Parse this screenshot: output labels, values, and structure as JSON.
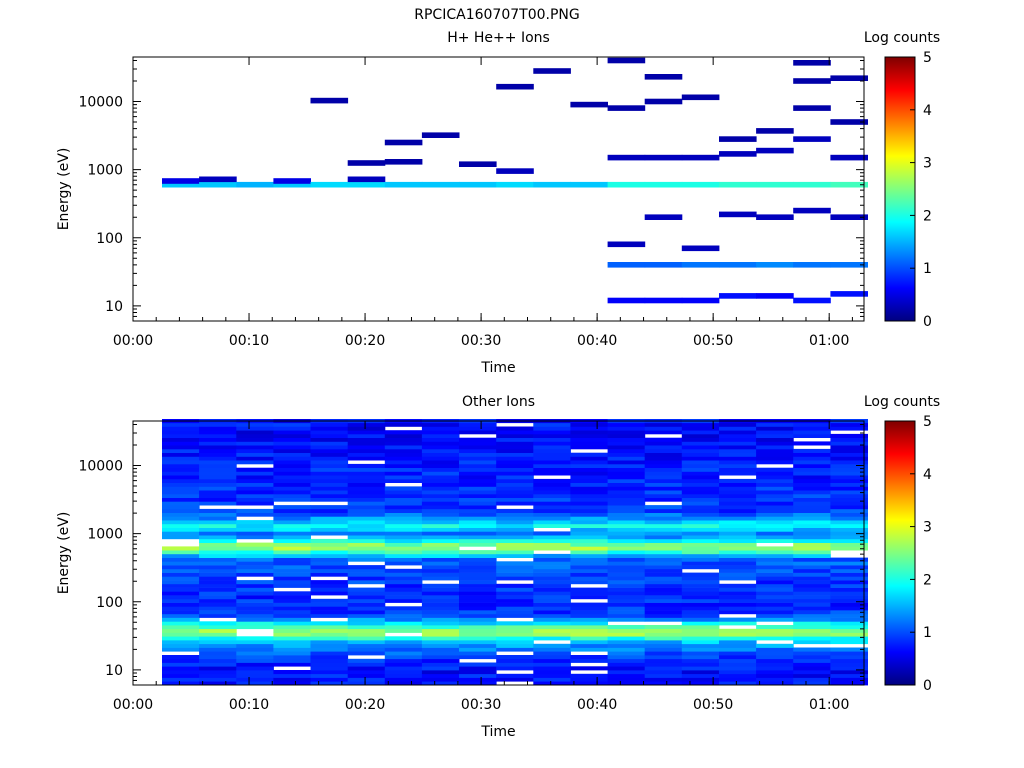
{
  "figure_title": "RPCICA160707T00.PNG",
  "chart_data": [
    {
      "type": "heatmap",
      "title": "H+ He++ Ions",
      "xlabel": "Time",
      "ylabel": "Energy (eV)",
      "x_ticks": [
        "00:00",
        "00:10",
        "00:20",
        "00:30",
        "00:40",
        "00:50",
        "01:00"
      ],
      "x_range_minutes": [
        0,
        63
      ],
      "y_scale": "log",
      "y_range": [
        6,
        45000
      ],
      "y_ticks": [
        "10",
        "100",
        "1000",
        "10000"
      ],
      "colorbar_label": "Log counts",
      "colorbar_ticks": [
        "0",
        "1",
        "2",
        "3",
        "4",
        "5"
      ],
      "colorbar_range": [
        0,
        5
      ],
      "colormap": "jet",
      "time_bins_minutes": [
        2.5,
        5.7,
        8.9,
        12.1,
        15.3,
        18.5,
        21.7,
        24.9,
        28.1,
        31.3,
        34.5,
        37.7,
        40.9,
        44.1,
        47.3,
        50.5,
        53.7,
        56.9,
        60.1
      ],
      "cells": [
        {
          "t": 0,
          "e": 600,
          "v": 1.6
        },
        {
          "t": 0,
          "e": 680,
          "v": 0.5
        },
        {
          "t": 1,
          "e": 600,
          "v": 1.6
        },
        {
          "t": 1,
          "e": 720,
          "v": 0.3
        },
        {
          "t": 2,
          "e": 600,
          "v": 1.5
        },
        {
          "t": 3,
          "e": 600,
          "v": 1.6
        },
        {
          "t": 3,
          "e": 680,
          "v": 0.5
        },
        {
          "t": 4,
          "e": 600,
          "v": 1.7
        },
        {
          "t": 4,
          "e": 10300,
          "v": 0.2
        },
        {
          "t": 5,
          "e": 600,
          "v": 1.7
        },
        {
          "t": 5,
          "e": 720,
          "v": 0.3
        },
        {
          "t": 5,
          "e": 1250,
          "v": 0.2
        },
        {
          "t": 6,
          "e": 600,
          "v": 1.6
        },
        {
          "t": 6,
          "e": 1300,
          "v": 0.2
        },
        {
          "t": 6,
          "e": 2500,
          "v": 0.2
        },
        {
          "t": 7,
          "e": 600,
          "v": 1.6
        },
        {
          "t": 7,
          "e": 3200,
          "v": 0.2
        },
        {
          "t": 8,
          "e": 600,
          "v": 1.6
        },
        {
          "t": 8,
          "e": 1200,
          "v": 0.2
        },
        {
          "t": 9,
          "e": 600,
          "v": 1.7
        },
        {
          "t": 9,
          "e": 950,
          "v": 0.3
        },
        {
          "t": 9,
          "e": 16500,
          "v": 0.2
        },
        {
          "t": 10,
          "e": 600,
          "v": 1.6
        },
        {
          "t": 10,
          "e": 28000,
          "v": 0.2
        },
        {
          "t": 11,
          "e": 600,
          "v": 1.6
        },
        {
          "t": 11,
          "e": 9000,
          "v": 0.2
        },
        {
          "t": 12,
          "e": 600,
          "v": 2.0
        },
        {
          "t": 12,
          "e": 40,
          "v": 1.1
        },
        {
          "t": 12,
          "e": 12,
          "v": 0.6
        },
        {
          "t": 12,
          "e": 80,
          "v": 0.3
        },
        {
          "t": 12,
          "e": 1500,
          "v": 0.3
        },
        {
          "t": 12,
          "e": 40000,
          "v": 0.2
        },
        {
          "t": 12,
          "e": 8000,
          "v": 0.2
        },
        {
          "t": 13,
          "e": 600,
          "v": 2.0
        },
        {
          "t": 13,
          "e": 40,
          "v": 1.1
        },
        {
          "t": 13,
          "e": 12,
          "v": 0.6
        },
        {
          "t": 13,
          "e": 200,
          "v": 0.3
        },
        {
          "t": 13,
          "e": 1500,
          "v": 0.3
        },
        {
          "t": 13,
          "e": 23000,
          "v": 0.2
        },
        {
          "t": 13,
          "e": 10000,
          "v": 0.2
        },
        {
          "t": 14,
          "e": 600,
          "v": 2.0
        },
        {
          "t": 14,
          "e": 40,
          "v": 1.2
        },
        {
          "t": 14,
          "e": 12,
          "v": 0.6
        },
        {
          "t": 14,
          "e": 70,
          "v": 0.3
        },
        {
          "t": 14,
          "e": 1500,
          "v": 0.3
        },
        {
          "t": 14,
          "e": 11500,
          "v": 0.2
        },
        {
          "t": 15,
          "e": 600,
          "v": 2.1
        },
        {
          "t": 15,
          "e": 40,
          "v": 1.2
        },
        {
          "t": 15,
          "e": 14,
          "v": 0.7
        },
        {
          "t": 15,
          "e": 220,
          "v": 0.3
        },
        {
          "t": 15,
          "e": 1700,
          "v": 0.3
        },
        {
          "t": 15,
          "e": 2800,
          "v": 0.2
        },
        {
          "t": 16,
          "e": 600,
          "v": 2.1
        },
        {
          "t": 16,
          "e": 40,
          "v": 1.3
        },
        {
          "t": 16,
          "e": 14,
          "v": 0.6
        },
        {
          "t": 16,
          "e": 200,
          "v": 0.3
        },
        {
          "t": 16,
          "e": 1900,
          "v": 0.3
        },
        {
          "t": 16,
          "e": 3700,
          "v": 0.2
        },
        {
          "t": 17,
          "e": 600,
          "v": 2.1
        },
        {
          "t": 17,
          "e": 40,
          "v": 1.2
        },
        {
          "t": 17,
          "e": 12,
          "v": 0.7
        },
        {
          "t": 17,
          "e": 250,
          "v": 0.3
        },
        {
          "t": 17,
          "e": 2800,
          "v": 0.3
        },
        {
          "t": 17,
          "e": 37000,
          "v": 0.2
        },
        {
          "t": 17,
          "e": 20000,
          "v": 0.2
        },
        {
          "t": 17,
          "e": 8000,
          "v": 0.2
        },
        {
          "t": 18,
          "e": 600,
          "v": 2.2
        },
        {
          "t": 18,
          "e": 40,
          "v": 1.2
        },
        {
          "t": 18,
          "e": 15,
          "v": 0.7
        },
        {
          "t": 18,
          "e": 200,
          "v": 0.3
        },
        {
          "t": 18,
          "e": 1500,
          "v": 0.3
        },
        {
          "t": 18,
          "e": 22000,
          "v": 0.2
        },
        {
          "t": 18,
          "e": 5000,
          "v": 0.2
        }
      ]
    },
    {
      "type": "heatmap",
      "title": "Other Ions",
      "xlabel": "Time",
      "ylabel": "Energy (eV)",
      "x_ticks": [
        "00:00",
        "00:10",
        "00:20",
        "00:30",
        "00:40",
        "00:50",
        "01:00"
      ],
      "x_range_minutes": [
        0,
        63
      ],
      "y_scale": "log",
      "y_range": [
        6,
        45000
      ],
      "y_ticks": [
        "10",
        "100",
        "1000",
        "10000"
      ],
      "colorbar_label": "Log counts",
      "colorbar_ticks": [
        "0",
        "1",
        "2",
        "3",
        "4",
        "5"
      ],
      "colorbar_range": [
        0,
        5
      ],
      "colormap": "jet",
      "time_bins_minutes": [
        2.5,
        5.7,
        8.9,
        12.1,
        15.3,
        18.5,
        21.7,
        24.9,
        28.1,
        31.3,
        34.5,
        37.7,
        40.9,
        44.1,
        47.3,
        50.5,
        53.7,
        56.9,
        60.1
      ],
      "energy_profile": [
        {
          "e": 35000,
          "v": 0.6
        },
        {
          "e": 15000,
          "v": 0.7
        },
        {
          "e": 5000,
          "v": 0.8
        },
        {
          "e": 2000,
          "v": 0.9
        },
        {
          "e": 1200,
          "v": 1.9
        },
        {
          "e": 900,
          "v": 1.1
        },
        {
          "e": 600,
          "v": 2.8
        },
        {
          "e": 400,
          "v": 1.1
        },
        {
          "e": 200,
          "v": 0.9
        },
        {
          "e": 100,
          "v": 0.8
        },
        {
          "e": 60,
          "v": 0.9
        },
        {
          "e": 33,
          "v": 2.8
        },
        {
          "e": 25,
          "v": 1.6
        },
        {
          "e": 15,
          "v": 0.9
        },
        {
          "e": 8,
          "v": 0.6
        }
      ]
    }
  ]
}
